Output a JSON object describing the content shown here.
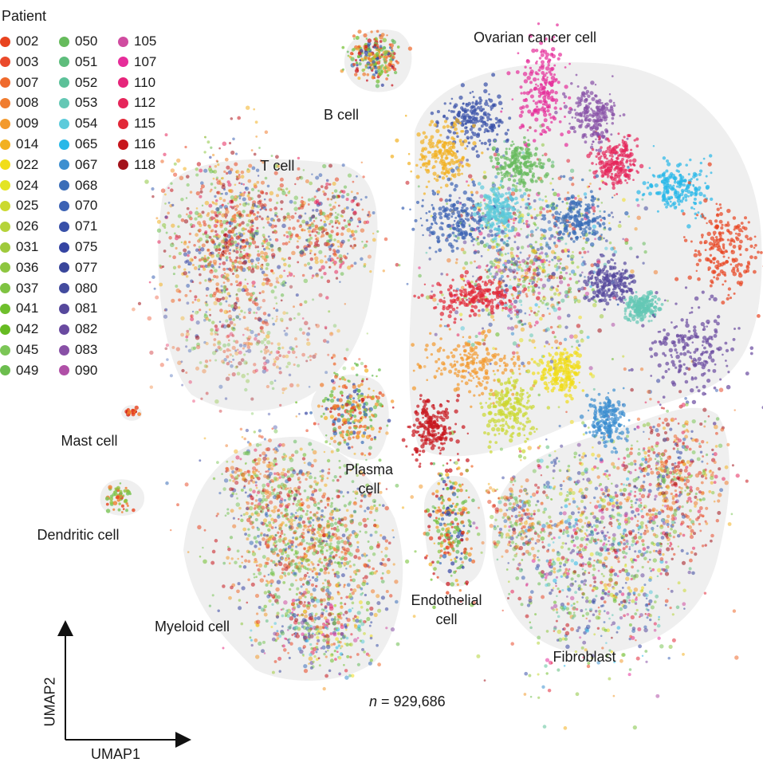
{
  "chart_data": {
    "type": "scatter",
    "xlabel": "UMAP1",
    "ylabel": "UMAP2",
    "annotation": {
      "prefix": "n",
      "value": "= 929,686"
    },
    "legend": {
      "title": "Patient",
      "placement": "top-left",
      "entries": [
        {
          "id": "002",
          "color": "#e8431f"
        },
        {
          "id": "003",
          "color": "#ea4a2b"
        },
        {
          "id": "007",
          "color": "#ef6a2c"
        },
        {
          "id": "008",
          "color": "#f07d30"
        },
        {
          "id": "009",
          "color": "#f39a2d"
        },
        {
          "id": "014",
          "color": "#f2b021"
        },
        {
          "id": "022",
          "color": "#f1dd1a"
        },
        {
          "id": "024",
          "color": "#e3e424"
        },
        {
          "id": "025",
          "color": "#cbd930"
        },
        {
          "id": "026",
          "color": "#b5d33a"
        },
        {
          "id": "031",
          "color": "#9fca3c"
        },
        {
          "id": "036",
          "color": "#8ec640"
        },
        {
          "id": "037",
          "color": "#7fc342"
        },
        {
          "id": "041",
          "color": "#6fbf2c"
        },
        {
          "id": "042",
          "color": "#66bb22"
        },
        {
          "id": "045",
          "color": "#7cc657"
        },
        {
          "id": "049",
          "color": "#6cbd4e"
        },
        {
          "id": "050",
          "color": "#66bb5c"
        },
        {
          "id": "051",
          "color": "#5ebd7c"
        },
        {
          "id": "052",
          "color": "#5cc199"
        },
        {
          "id": "053",
          "color": "#64c8b5"
        },
        {
          "id": "054",
          "color": "#5ccbdb"
        },
        {
          "id": "065",
          "color": "#28b8e8"
        },
        {
          "id": "067",
          "color": "#3d8fd0"
        },
        {
          "id": "068",
          "color": "#3a6db8"
        },
        {
          "id": "070",
          "color": "#3c62b4"
        },
        {
          "id": "071",
          "color": "#3850a8"
        },
        {
          "id": "075",
          "color": "#3544a2"
        },
        {
          "id": "077",
          "color": "#39469b"
        },
        {
          "id": "080",
          "color": "#434b9e"
        },
        {
          "id": "081",
          "color": "#56489c"
        },
        {
          "id": "082",
          "color": "#6a4aa0"
        },
        {
          "id": "083",
          "color": "#8850a6"
        },
        {
          "id": "090",
          "color": "#b050a7"
        },
        {
          "id": "105",
          "color": "#d04ca0"
        },
        {
          "id": "107",
          "color": "#e62d9a"
        },
        {
          "id": "110",
          "color": "#e6257b"
        },
        {
          "id": "112",
          "color": "#e6265b"
        },
        {
          "id": "115",
          "color": "#e22838"
        },
        {
          "id": "116",
          "color": "#c7161c"
        },
        {
          "id": "118",
          "color": "#a3121a"
        }
      ]
    },
    "clusters": [
      {
        "label": "Ovarian cancer cell"
      },
      {
        "label": "B cell"
      },
      {
        "label": "T cell"
      },
      {
        "label": "Mast cell"
      },
      {
        "label": "Dendritic cell"
      },
      {
        "label": "Plasma cell"
      },
      {
        "label": "Myeloid cell"
      },
      {
        "label": "Endothelial cell"
      },
      {
        "label": "Fibroblast"
      }
    ]
  }
}
